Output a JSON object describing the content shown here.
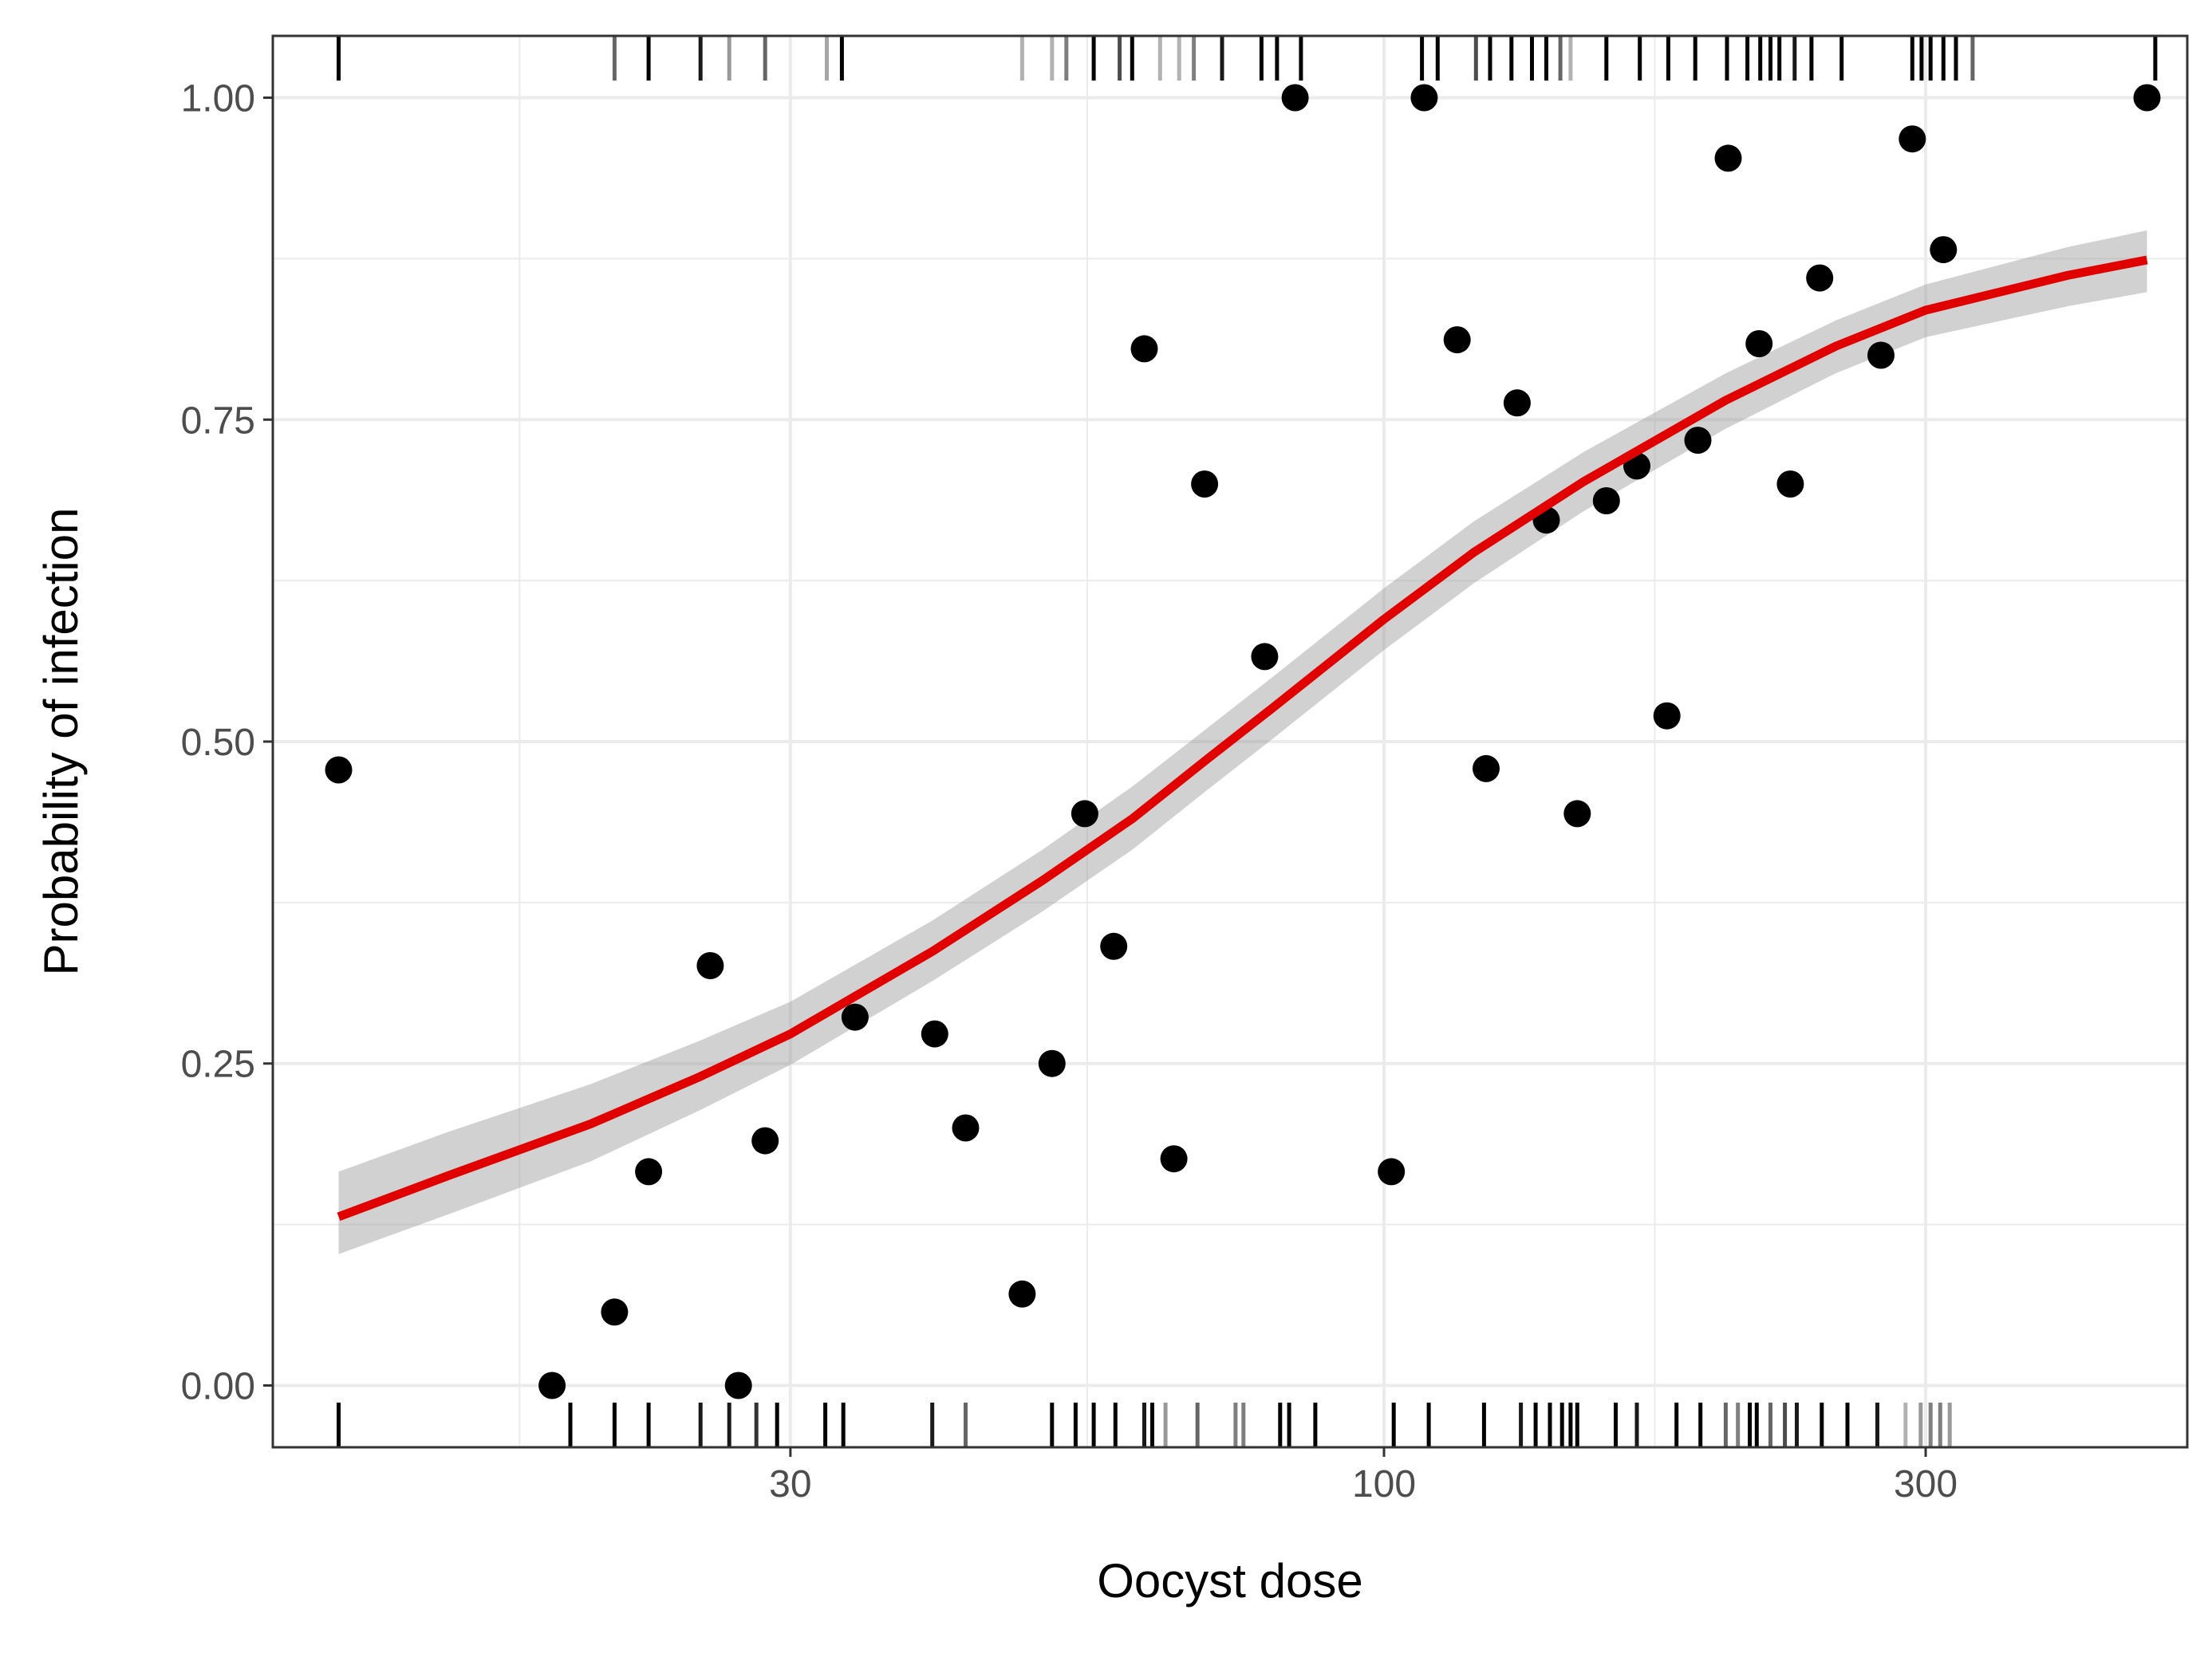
{
  "chart_data": {
    "type": "scatter",
    "title": "",
    "xlabel": "Oocyst dose",
    "ylabel": "Probability of infection",
    "x_scale": "log10",
    "xlim": [
      10.5,
      510
    ],
    "ylim": [
      -0.048,
      1.048
    ],
    "x_ticks": [
      {
        "value": 30,
        "label": "30"
      },
      {
        "value": 100,
        "label": "100"
      },
      {
        "value": 300,
        "label": "300"
      }
    ],
    "x_minor_ticks": [
      17.32,
      54.77,
      173.2
    ],
    "y_ticks": [
      {
        "value": 0,
        "label": "0.00"
      },
      {
        "value": 0.25,
        "label": "0.25"
      },
      {
        "value": 0.5,
        "label": "0.50"
      },
      {
        "value": 0.75,
        "label": "0.75"
      },
      {
        "value": 1,
        "label": "1.00"
      }
    ],
    "y_minor_ticks": [
      0.125,
      0.375,
      0.625,
      0.875
    ],
    "grid": true,
    "legend": "none",
    "colors": {
      "points": "#000000",
      "fit_line": "#e00000",
      "ribbon": "#999999",
      "panel_border": "#333333",
      "grid": "#ebebeb"
    },
    "points": [
      {
        "x": 12.0,
        "y": 0.478
      },
      {
        "x": 18.5,
        "y": 0.0
      },
      {
        "x": 21.0,
        "y": 0.057
      },
      {
        "x": 22.5,
        "y": 0.166
      },
      {
        "x": 25.5,
        "y": 0.326
      },
      {
        "x": 27.0,
        "y": 0.0
      },
      {
        "x": 28.5,
        "y": 0.19
      },
      {
        "x": 34.2,
        "y": 0.286
      },
      {
        "x": 40.2,
        "y": 0.273
      },
      {
        "x": 42.8,
        "y": 0.2
      },
      {
        "x": 48.0,
        "y": 0.071
      },
      {
        "x": 51.0,
        "y": 0.25
      },
      {
        "x": 54.5,
        "y": 0.444
      },
      {
        "x": 57.8,
        "y": 0.341
      },
      {
        "x": 61.5,
        "y": 0.805
      },
      {
        "x": 65.3,
        "y": 0.176
      },
      {
        "x": 69.5,
        "y": 0.7
      },
      {
        "x": 78.5,
        "y": 0.566
      },
      {
        "x": 83.5,
        "y": 1.0
      },
      {
        "x": 101.5,
        "y": 0.166
      },
      {
        "x": 108.5,
        "y": 1.0
      },
      {
        "x": 116.0,
        "y": 0.812
      },
      {
        "x": 123.0,
        "y": 0.479
      },
      {
        "x": 131.0,
        "y": 0.763
      },
      {
        "x": 139.0,
        "y": 0.672
      },
      {
        "x": 148.0,
        "y": 0.444
      },
      {
        "x": 157.0,
        "y": 0.687
      },
      {
        "x": 167.0,
        "y": 0.714
      },
      {
        "x": 177.5,
        "y": 0.52
      },
      {
        "x": 189.0,
        "y": 0.734
      },
      {
        "x": 201.0,
        "y": 0.953
      },
      {
        "x": 214.0,
        "y": 0.809
      },
      {
        "x": 228.0,
        "y": 0.7
      },
      {
        "x": 242.0,
        "y": 0.86
      },
      {
        "x": 274.0,
        "y": 0.8
      },
      {
        "x": 292.0,
        "y": 0.968
      },
      {
        "x": 311.0,
        "y": 0.882
      },
      {
        "x": 470.0,
        "y": 1.0
      }
    ],
    "fit_curve": [
      {
        "x": 12.0,
        "y": 0.131,
        "lower": 0.102,
        "upper": 0.166
      },
      {
        "x": 15.0,
        "y": 0.163,
        "lower": 0.133,
        "upper": 0.197
      },
      {
        "x": 20.0,
        "y": 0.203,
        "lower": 0.174,
        "upper": 0.234
      },
      {
        "x": 25.0,
        "y": 0.24,
        "lower": 0.214,
        "upper": 0.268
      },
      {
        "x": 30.0,
        "y": 0.273,
        "lower": 0.249,
        "upper": 0.298
      },
      {
        "x": 40.0,
        "y": 0.337,
        "lower": 0.314,
        "upper": 0.361
      },
      {
        "x": 50.0,
        "y": 0.392,
        "lower": 0.368,
        "upper": 0.416
      },
      {
        "x": 60.0,
        "y": 0.44,
        "lower": 0.416,
        "upper": 0.465
      },
      {
        "x": 70.0,
        "y": 0.487,
        "lower": 0.463,
        "upper": 0.511
      },
      {
        "x": 80.0,
        "y": 0.527,
        "lower": 0.503,
        "upper": 0.551
      },
      {
        "x": 100.0,
        "y": 0.595,
        "lower": 0.571,
        "upper": 0.619
      },
      {
        "x": 120.0,
        "y": 0.647,
        "lower": 0.623,
        "upper": 0.671
      },
      {
        "x": 150.0,
        "y": 0.702,
        "lower": 0.679,
        "upper": 0.725
      },
      {
        "x": 200.0,
        "y": 0.765,
        "lower": 0.743,
        "upper": 0.786
      },
      {
        "x": 250.0,
        "y": 0.807,
        "lower": 0.786,
        "upper": 0.827
      },
      {
        "x": 300.0,
        "y": 0.835,
        "lower": 0.814,
        "upper": 0.855
      },
      {
        "x": 400.0,
        "y": 0.862,
        "lower": 0.838,
        "upper": 0.884
      },
      {
        "x": 470.0,
        "y": 0.874,
        "lower": 0.849,
        "upper": 0.897
      }
    ],
    "rug_top": [
      {
        "x": 12.0,
        "opacity": 1.0
      },
      {
        "x": 21.0,
        "opacity": 0.6
      },
      {
        "x": 22.5,
        "opacity": 1.0
      },
      {
        "x": 25.0,
        "opacity": 0.9
      },
      {
        "x": 26.5,
        "opacity": 0.4
      },
      {
        "x": 28.5,
        "opacity": 0.6
      },
      {
        "x": 32.3,
        "opacity": 0.35
      },
      {
        "x": 33.3,
        "opacity": 1.0
      },
      {
        "x": 48.0,
        "opacity": 0.3
      },
      {
        "x": 51.0,
        "opacity": 0.3
      },
      {
        "x": 52.5,
        "opacity": 0.5
      },
      {
        "x": 55.5,
        "opacity": 1.0
      },
      {
        "x": 58.5,
        "opacity": 0.7
      },
      {
        "x": 60.0,
        "opacity": 1.0
      },
      {
        "x": 63.5,
        "opacity": 0.3
      },
      {
        "x": 66.0,
        "opacity": 0.3
      },
      {
        "x": 68.0,
        "opacity": 0.5
      },
      {
        "x": 72.0,
        "opacity": 0.9
      },
      {
        "x": 78.0,
        "opacity": 1.0
      },
      {
        "x": 80.5,
        "opacity": 1.0
      },
      {
        "x": 84.5,
        "opacity": 1.0
      },
      {
        "x": 108.0,
        "opacity": 1.0
      },
      {
        "x": 111.5,
        "opacity": 1.0
      },
      {
        "x": 120.5,
        "opacity": 0.7
      },
      {
        "x": 124.0,
        "opacity": 1.0
      },
      {
        "x": 129.5,
        "opacity": 1.0
      },
      {
        "x": 135.0,
        "opacity": 1.0
      },
      {
        "x": 139.0,
        "opacity": 1.0
      },
      {
        "x": 143.0,
        "opacity": 0.6
      },
      {
        "x": 146.0,
        "opacity": 0.3
      },
      {
        "x": 157.0,
        "opacity": 1.0
      },
      {
        "x": 168.0,
        "opacity": 1.0
      },
      {
        "x": 178.0,
        "opacity": 1.0
      },
      {
        "x": 188.0,
        "opacity": 1.0
      },
      {
        "x": 200.5,
        "opacity": 1.0
      },
      {
        "x": 209.0,
        "opacity": 1.0
      },
      {
        "x": 214.5,
        "opacity": 1.0
      },
      {
        "x": 219.0,
        "opacity": 1.0
      },
      {
        "x": 223.0,
        "opacity": 1.0
      },
      {
        "x": 230.0,
        "opacity": 0.9
      },
      {
        "x": 238.0,
        "opacity": 1.0
      },
      {
        "x": 253.0,
        "opacity": 1.0
      },
      {
        "x": 292.0,
        "opacity": 1.0
      },
      {
        "x": 297.5,
        "opacity": 1.0
      },
      {
        "x": 303.0,
        "opacity": 1.0
      },
      {
        "x": 311.0,
        "opacity": 1.0
      },
      {
        "x": 319.0,
        "opacity": 1.0
      },
      {
        "x": 330.0,
        "opacity": 0.6
      },
      {
        "x": 478.0,
        "opacity": 1.0
      }
    ],
    "rug_bottom": [
      {
        "x": 12.0,
        "opacity": 1.0
      },
      {
        "x": 19.2,
        "opacity": 1.0
      },
      {
        "x": 21.0,
        "opacity": 1.0
      },
      {
        "x": 22.5,
        "opacity": 1.0
      },
      {
        "x": 25.0,
        "opacity": 0.9
      },
      {
        "x": 26.5,
        "opacity": 0.9
      },
      {
        "x": 28.0,
        "opacity": 0.8
      },
      {
        "x": 29.2,
        "opacity": 1.0
      },
      {
        "x": 32.2,
        "opacity": 1.0
      },
      {
        "x": 33.4,
        "opacity": 1.0
      },
      {
        "x": 40.0,
        "opacity": 0.9
      },
      {
        "x": 42.8,
        "opacity": 0.6
      },
      {
        "x": 51.0,
        "opacity": 1.0
      },
      {
        "x": 53.5,
        "opacity": 1.0
      },
      {
        "x": 55.5,
        "opacity": 1.0
      },
      {
        "x": 58.0,
        "opacity": 1.0
      },
      {
        "x": 61.5,
        "opacity": 0.9
      },
      {
        "x": 62.5,
        "opacity": 1.0
      },
      {
        "x": 64.2,
        "opacity": 0.4
      },
      {
        "x": 68.5,
        "opacity": 0.6
      },
      {
        "x": 74.0,
        "opacity": 0.5
      },
      {
        "x": 75.2,
        "opacity": 0.5
      },
      {
        "x": 81.0,
        "opacity": 1.0
      },
      {
        "x": 82.5,
        "opacity": 1.0
      },
      {
        "x": 87.0,
        "opacity": 1.0
      },
      {
        "x": 102.0,
        "opacity": 1.0
      },
      {
        "x": 109.5,
        "opacity": 1.0
      },
      {
        "x": 122.5,
        "opacity": 1.0
      },
      {
        "x": 132.0,
        "opacity": 0.9
      },
      {
        "x": 136.0,
        "opacity": 1.0
      },
      {
        "x": 140.0,
        "opacity": 1.0
      },
      {
        "x": 143.5,
        "opacity": 1.0
      },
      {
        "x": 146.0,
        "opacity": 1.0
      },
      {
        "x": 148.0,
        "opacity": 1.0
      },
      {
        "x": 160.0,
        "opacity": 1.0
      },
      {
        "x": 167.0,
        "opacity": 0.9
      },
      {
        "x": 181.0,
        "opacity": 1.0
      },
      {
        "x": 190.0,
        "opacity": 1.0
      },
      {
        "x": 200.0,
        "opacity": 0.6
      },
      {
        "x": 205.0,
        "opacity": 0.5
      },
      {
        "x": 210.0,
        "opacity": 1.0
      },
      {
        "x": 213.0,
        "opacity": 1.0
      },
      {
        "x": 219.0,
        "opacity": 0.6
      },
      {
        "x": 225.5,
        "opacity": 0.7
      },
      {
        "x": 231.0,
        "opacity": 0.9
      },
      {
        "x": 243.0,
        "opacity": 1.0
      },
      {
        "x": 256.0,
        "opacity": 1.0
      },
      {
        "x": 272.0,
        "opacity": 0.9
      },
      {
        "x": 288.0,
        "opacity": 0.3
      },
      {
        "x": 297.0,
        "opacity": 0.4
      },
      {
        "x": 303.0,
        "opacity": 0.5
      },
      {
        "x": 309.0,
        "opacity": 0.5
      },
      {
        "x": 315.0,
        "opacity": 0.4
      }
    ]
  }
}
